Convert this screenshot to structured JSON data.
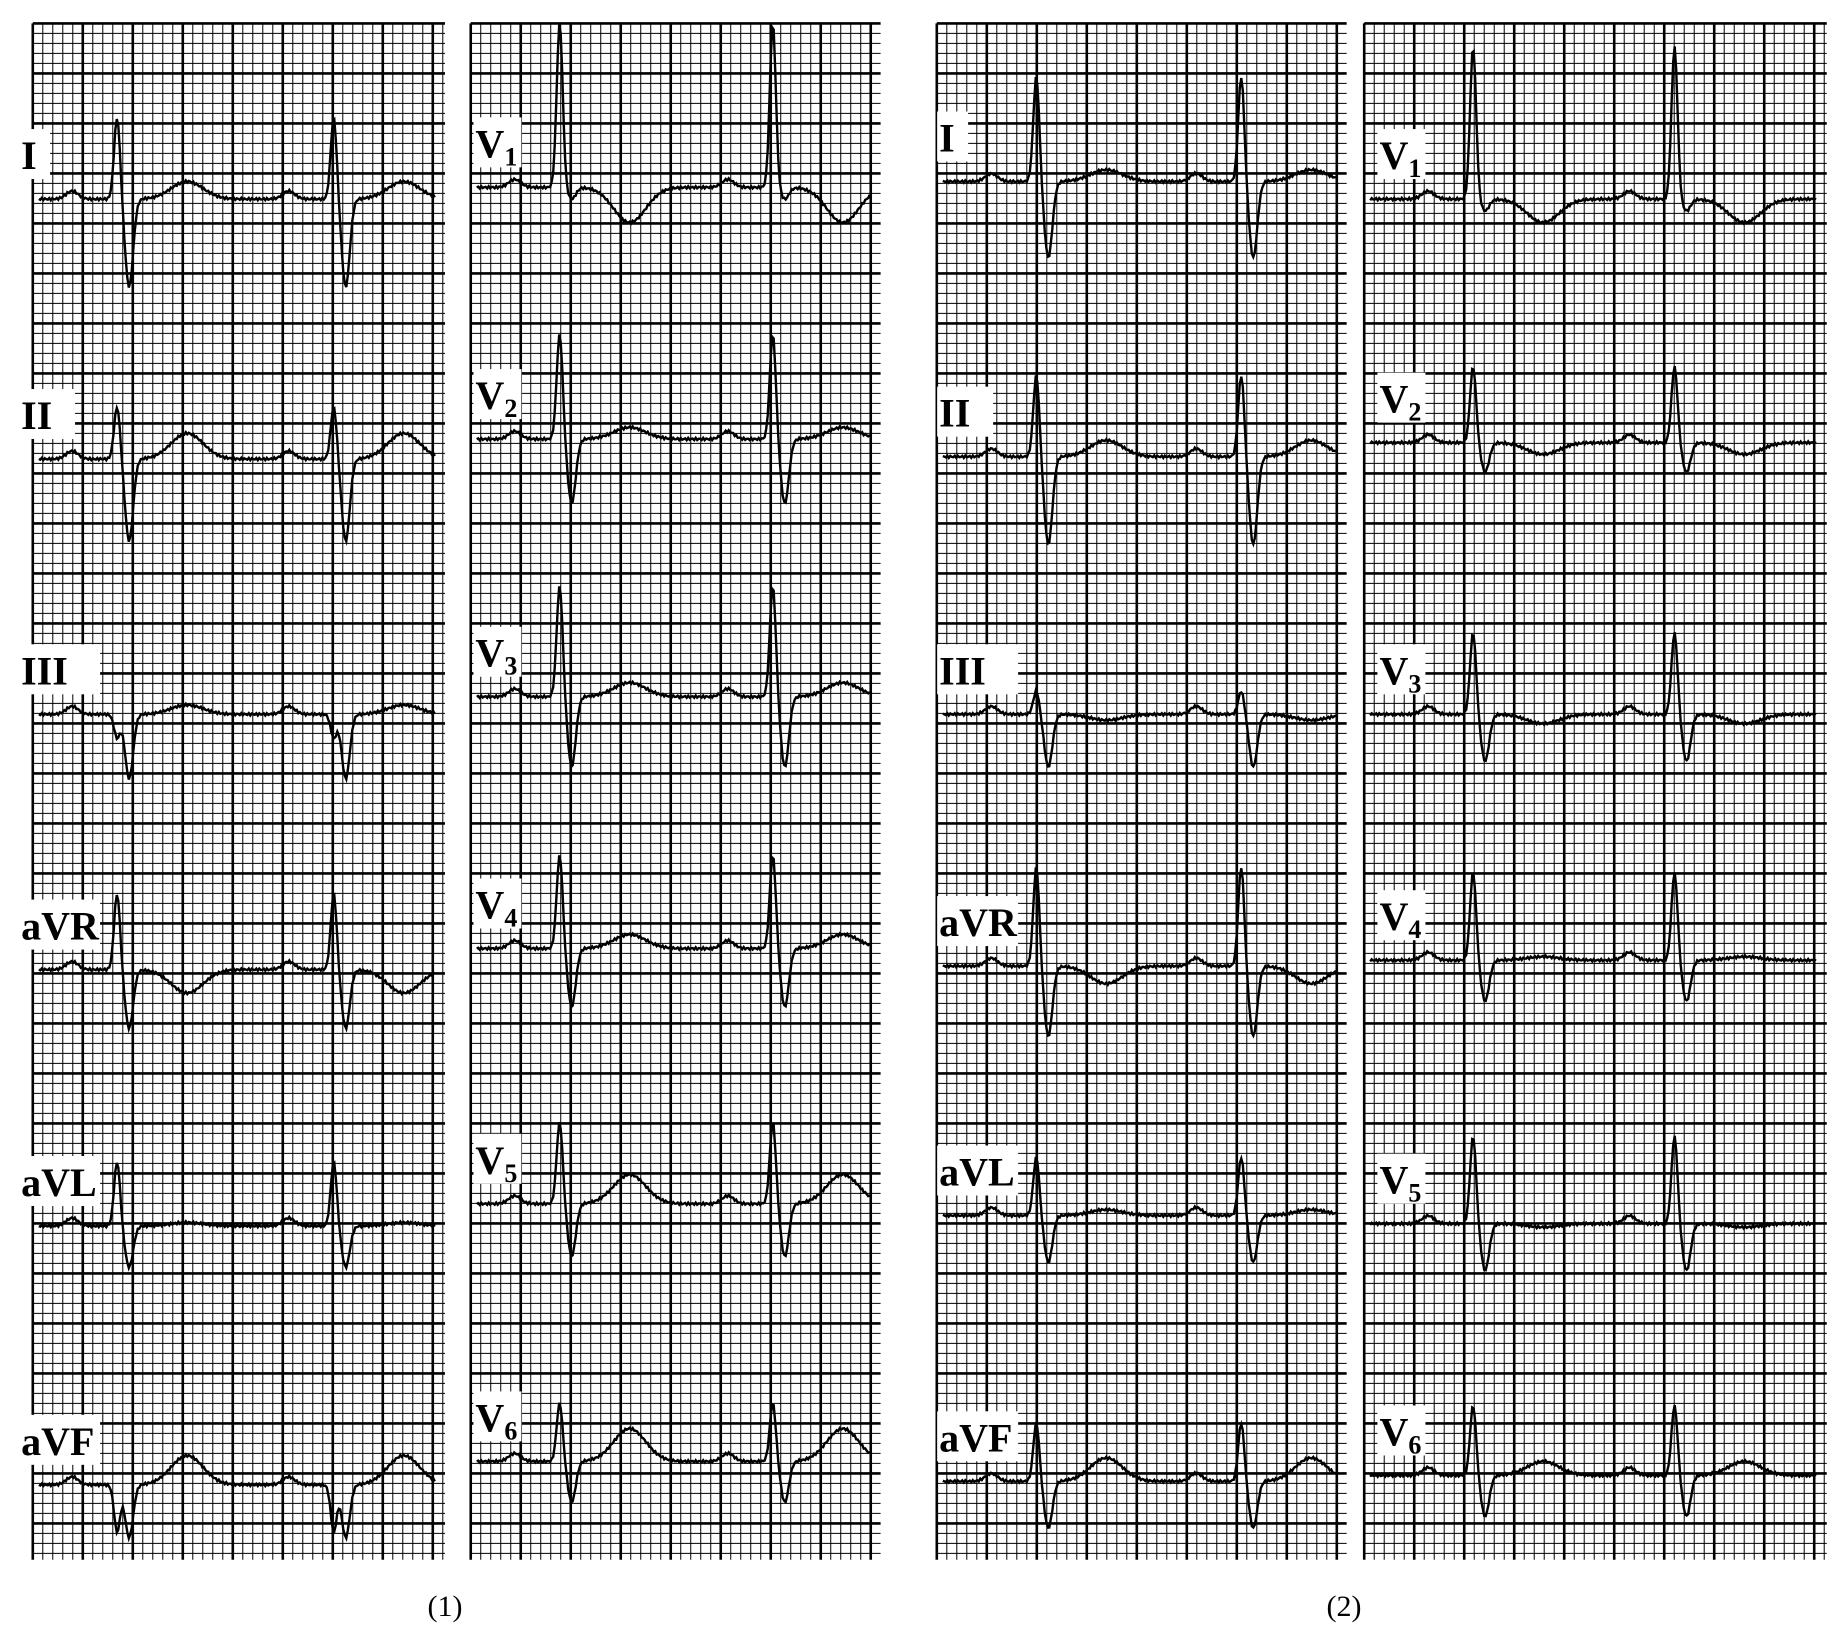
{
  "figure_parts": [
    {
      "caption": "(1)",
      "panels": [
        {
          "leads": [
            {
              "label": "I",
              "sub": ""
            },
            {
              "label": "II",
              "sub": ""
            },
            {
              "label": "III",
              "sub": ""
            },
            {
              "label": "aVR",
              "sub": ""
            },
            {
              "label": "aVL",
              "sub": ""
            },
            {
              "label": "aVF",
              "sub": ""
            }
          ]
        },
        {
          "leads": [
            {
              "label": "V",
              "sub": "1"
            },
            {
              "label": "V",
              "sub": "2"
            },
            {
              "label": "V",
              "sub": "3"
            },
            {
              "label": "V",
              "sub": "4"
            },
            {
              "label": "V",
              "sub": "5"
            },
            {
              "label": "V",
              "sub": "6"
            }
          ]
        }
      ]
    },
    {
      "caption": "(2)",
      "panels": [
        {
          "leads": [
            {
              "label": "I",
              "sub": ""
            },
            {
              "label": "II",
              "sub": ""
            },
            {
              "label": "III",
              "sub": ""
            },
            {
              "label": "aVR",
              "sub": ""
            },
            {
              "label": "aVL",
              "sub": ""
            },
            {
              "label": "aVF",
              "sub": ""
            }
          ]
        },
        {
          "leads": [
            {
              "label": "V",
              "sub": "1"
            },
            {
              "label": "V",
              "sub": "2"
            },
            {
              "label": "V",
              "sub": "3"
            },
            {
              "label": "V",
              "sub": "4"
            },
            {
              "label": "V",
              "sub": "5"
            },
            {
              "label": "V",
              "sub": "6"
            }
          ]
        }
      ]
    }
  ],
  "colors": {
    "grid": "#000000",
    "trace": "#000000",
    "background": "#ffffff"
  }
}
